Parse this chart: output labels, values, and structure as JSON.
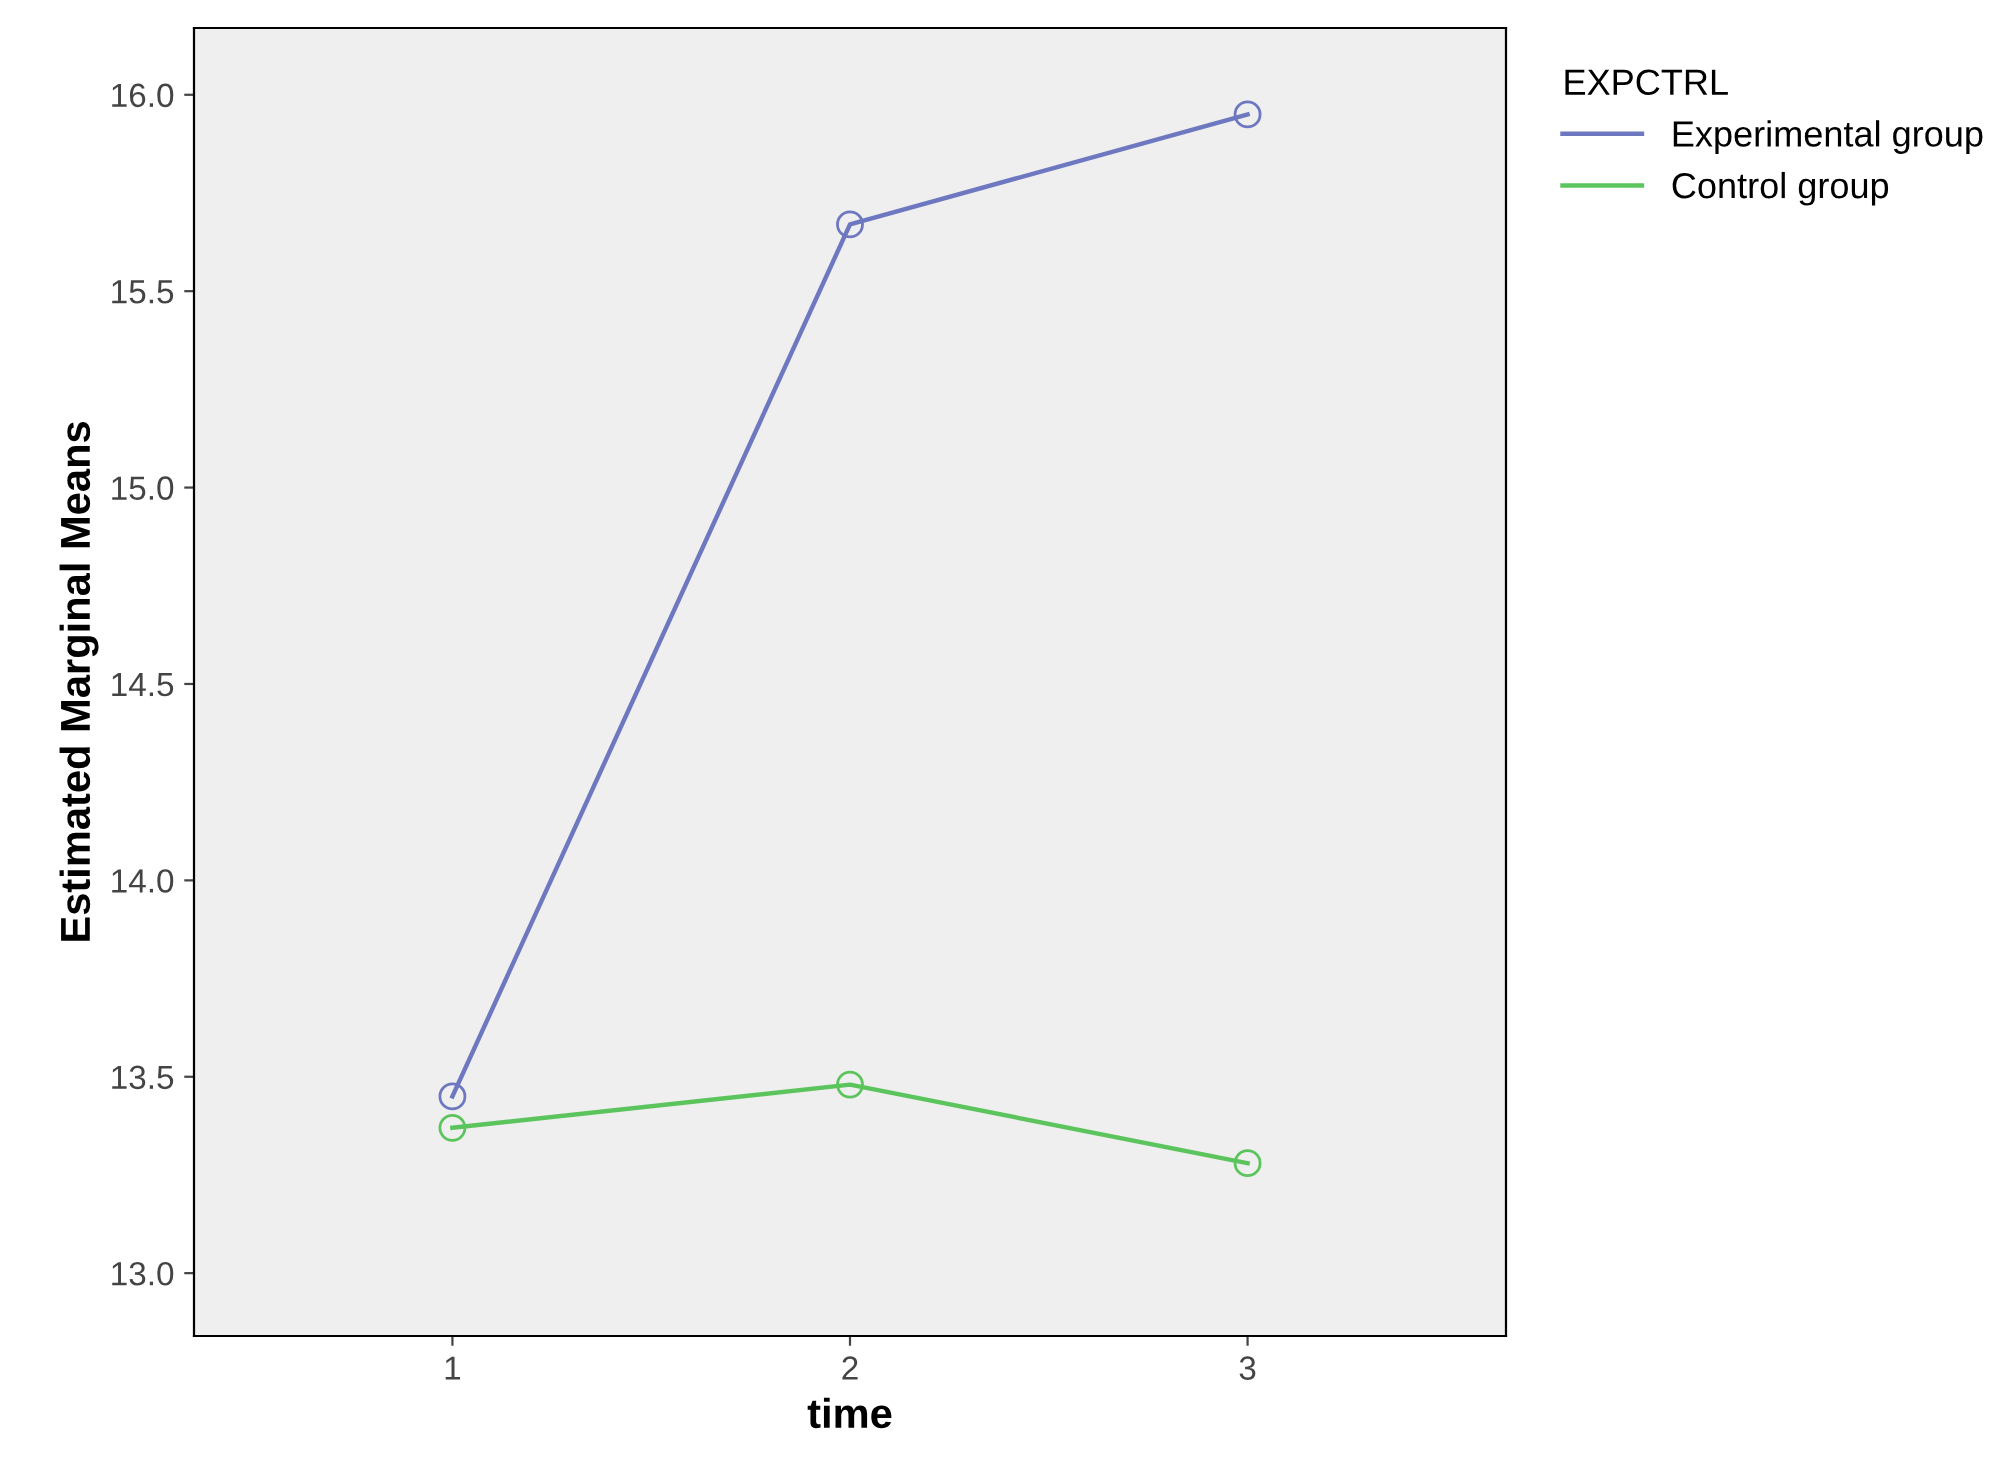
{
  "chart_data": {
    "type": "line",
    "xlabel": "time",
    "ylabel": "Estimated Marginal Means",
    "legend_title": "EXPCTRL",
    "categories": [
      "1",
      "2",
      "3"
    ],
    "series": [
      {
        "name": "Experimental group",
        "color": "#6d78c0",
        "values": [
          13.45,
          15.67,
          15.95
        ]
      },
      {
        "name": "Control group",
        "color": "#5cc45c",
        "values": [
          13.37,
          13.48,
          13.28
        ]
      }
    ],
    "ylim": [
      12.84,
      16.17
    ],
    "yticks": [
      {
        "value": 13.0,
        "label": "13.0"
      },
      {
        "value": 13.5,
        "label": "13.5"
      },
      {
        "value": 14.0,
        "label": "14.0"
      },
      {
        "value": 14.5,
        "label": "14.5"
      },
      {
        "value": 15.0,
        "label": "15.0"
      },
      {
        "value": 15.5,
        "label": "15.5"
      },
      {
        "value": 16.0,
        "label": "16.0"
      }
    ],
    "grid": false,
    "legend": "top right",
    "marker": "circle",
    "line_style": "solid"
  }
}
